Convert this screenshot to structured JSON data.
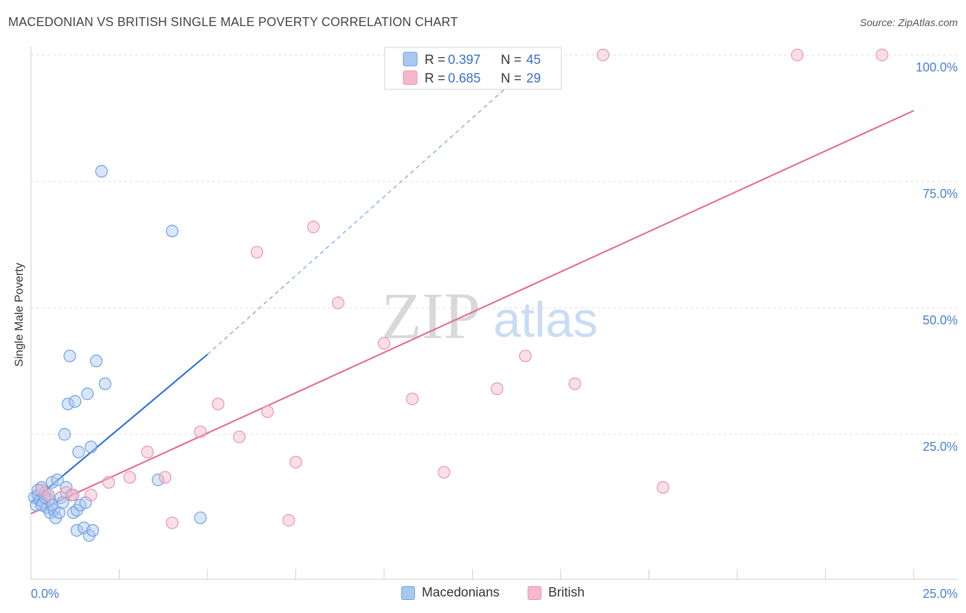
{
  "header": {
    "title": "MACEDONIAN VS BRITISH SINGLE MALE POVERTY CORRELATION CHART",
    "source": "Source: ZipAtlas.com"
  },
  "watermark": {
    "zip": "ZIP",
    "atlas": "atlas"
  },
  "colors": {
    "blue_fill": "#a8c8f0",
    "blue_stroke": "#6a9de0",
    "blue_line": "#2a6fd6",
    "pink_fill": "#f6b8ca",
    "pink_stroke": "#e890ab",
    "pink_line": "#e36b95",
    "tick_text": "#4a7fd0"
  },
  "legend": {
    "r_label": "R =",
    "n_label": "N =",
    "series": [
      {
        "name": "Macedonians",
        "r": "0.397",
        "n": "45"
      },
      {
        "name": "British",
        "r": "0.685",
        "n": "29"
      }
    ]
  },
  "chart_data": {
    "type": "scatter",
    "title": "MACEDONIAN VS BRITISH SINGLE MALE POVERTY CORRELATION CHART",
    "xlabel": "",
    "ylabel": "Single Male Poverty",
    "xlim": [
      0,
      25
    ],
    "ylim": [
      0,
      100
    ],
    "x_tick_labels": [
      "0.0%",
      "25.0%"
    ],
    "y_tick_labels": [
      "25.0%",
      "50.0%",
      "75.0%",
      "100.0%"
    ],
    "y_ticks": [
      25,
      50,
      75,
      100
    ],
    "series": [
      {
        "name": "Macedonians",
        "r": 0.397,
        "n": 45,
        "trend": {
          "x0": 0.0,
          "y0": 11.5,
          "x1": 5.0,
          "y1": 40.8,
          "dashed_to": {
            "x": 14.5,
            "y": 100
          }
        },
        "points": [
          [
            0.1,
            12.5
          ],
          [
            0.15,
            11.0
          ],
          [
            0.2,
            13.0
          ],
          [
            0.25,
            12.0
          ],
          [
            0.3,
            14.5
          ],
          [
            0.35,
            11.5
          ],
          [
            0.4,
            13.5
          ],
          [
            0.45,
            10.5
          ],
          [
            0.5,
            12.0
          ],
          [
            0.55,
            9.5
          ],
          [
            0.6,
            15.5
          ],
          [
            0.65,
            10.0
          ],
          [
            0.7,
            8.5
          ],
          [
            0.75,
            16.0
          ],
          [
            0.8,
            9.5
          ],
          [
            0.85,
            12.5
          ],
          [
            0.9,
            11.5
          ],
          [
            0.95,
            25.0
          ],
          [
            1.0,
            14.5
          ],
          [
            1.05,
            31.0
          ],
          [
            1.1,
            40.5
          ],
          [
            1.15,
            13.0
          ],
          [
            1.2,
            9.5
          ],
          [
            1.25,
            31.5
          ],
          [
            1.3,
            10.0
          ],
          [
            1.3,
            6.0
          ],
          [
            1.35,
            21.5
          ],
          [
            1.4,
            11.0
          ],
          [
            1.5,
            6.5
          ],
          [
            1.55,
            11.5
          ],
          [
            1.6,
            33.0
          ],
          [
            1.65,
            5.0
          ],
          [
            1.7,
            22.5
          ],
          [
            1.75,
            6.0
          ],
          [
            1.85,
            39.5
          ],
          [
            2.0,
            77.0
          ],
          [
            2.1,
            35.0
          ],
          [
            3.6,
            16.0
          ],
          [
            4.0,
            65.2
          ],
          [
            4.8,
            8.5
          ],
          [
            0.3,
            11.0
          ],
          [
            0.5,
            13.0
          ],
          [
            0.2,
            14.0
          ],
          [
            0.4,
            12.5
          ],
          [
            0.6,
            11.0
          ]
        ]
      },
      {
        "name": "British",
        "r": 0.685,
        "n": 29,
        "trend": {
          "x0": 0.0,
          "y0": 9.3,
          "x1": 25.0,
          "y1": 89.0
        },
        "points": [
          [
            0.3,
            14.0
          ],
          [
            0.5,
            13.0
          ],
          [
            1.2,
            13.0
          ],
          [
            1.7,
            13.0
          ],
          [
            2.2,
            15.5
          ],
          [
            2.8,
            16.5
          ],
          [
            3.3,
            21.5
          ],
          [
            3.8,
            16.5
          ],
          [
            4.0,
            7.5
          ],
          [
            4.8,
            25.5
          ],
          [
            5.3,
            31.0
          ],
          [
            5.9,
            24.5
          ],
          [
            6.4,
            61.0
          ],
          [
            6.7,
            29.5
          ],
          [
            7.3,
            8.0
          ],
          [
            7.5,
            19.5
          ],
          [
            8.0,
            66.0
          ],
          [
            8.7,
            51.0
          ],
          [
            10.0,
            43.0
          ],
          [
            10.8,
            32.0
          ],
          [
            11.7,
            17.5
          ],
          [
            13.2,
            34.0
          ],
          [
            14.0,
            40.5
          ],
          [
            15.4,
            35.0
          ],
          [
            16.2,
            100.0
          ],
          [
            17.9,
            14.5
          ],
          [
            21.7,
            100.0
          ],
          [
            24.1,
            100.0
          ],
          [
            1.0,
            13.5
          ]
        ]
      }
    ]
  }
}
